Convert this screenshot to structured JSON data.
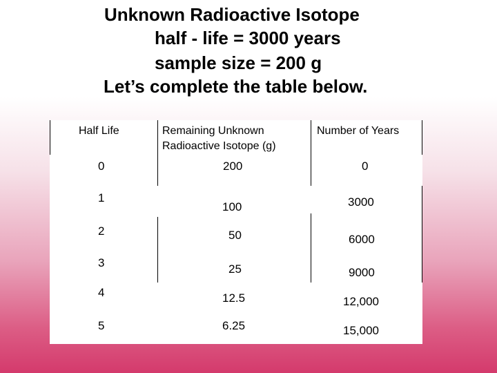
{
  "title_lines": [
    "Unknown Radioactive Isotope",
    "half - life = 3000 years",
    "sample size = 200 g",
    "Let’s complete the table below."
  ],
  "table": {
    "headers": [
      "Half Life",
      "Remaining Unknown Radioactive Isotope (g)",
      "Number of Years"
    ],
    "header_remaining_line1": "Remaining Unknown",
    "header_remaining_line2": "Radioactive Isotope (g)",
    "rows": [
      {
        "half_life": "0",
        "remaining": "200",
        "years": "0"
      },
      {
        "half_life": "1",
        "remaining": "100",
        "years": "3000"
      },
      {
        "half_life": "2",
        "remaining": "50",
        "years": "6000"
      },
      {
        "half_life": "3",
        "remaining": "25",
        "years": "9000"
      },
      {
        "half_life": "4",
        "remaining": "12.5",
        "years": "12,000"
      },
      {
        "half_life": "5",
        "remaining": "6.25",
        "years": "15,000"
      }
    ]
  }
}
